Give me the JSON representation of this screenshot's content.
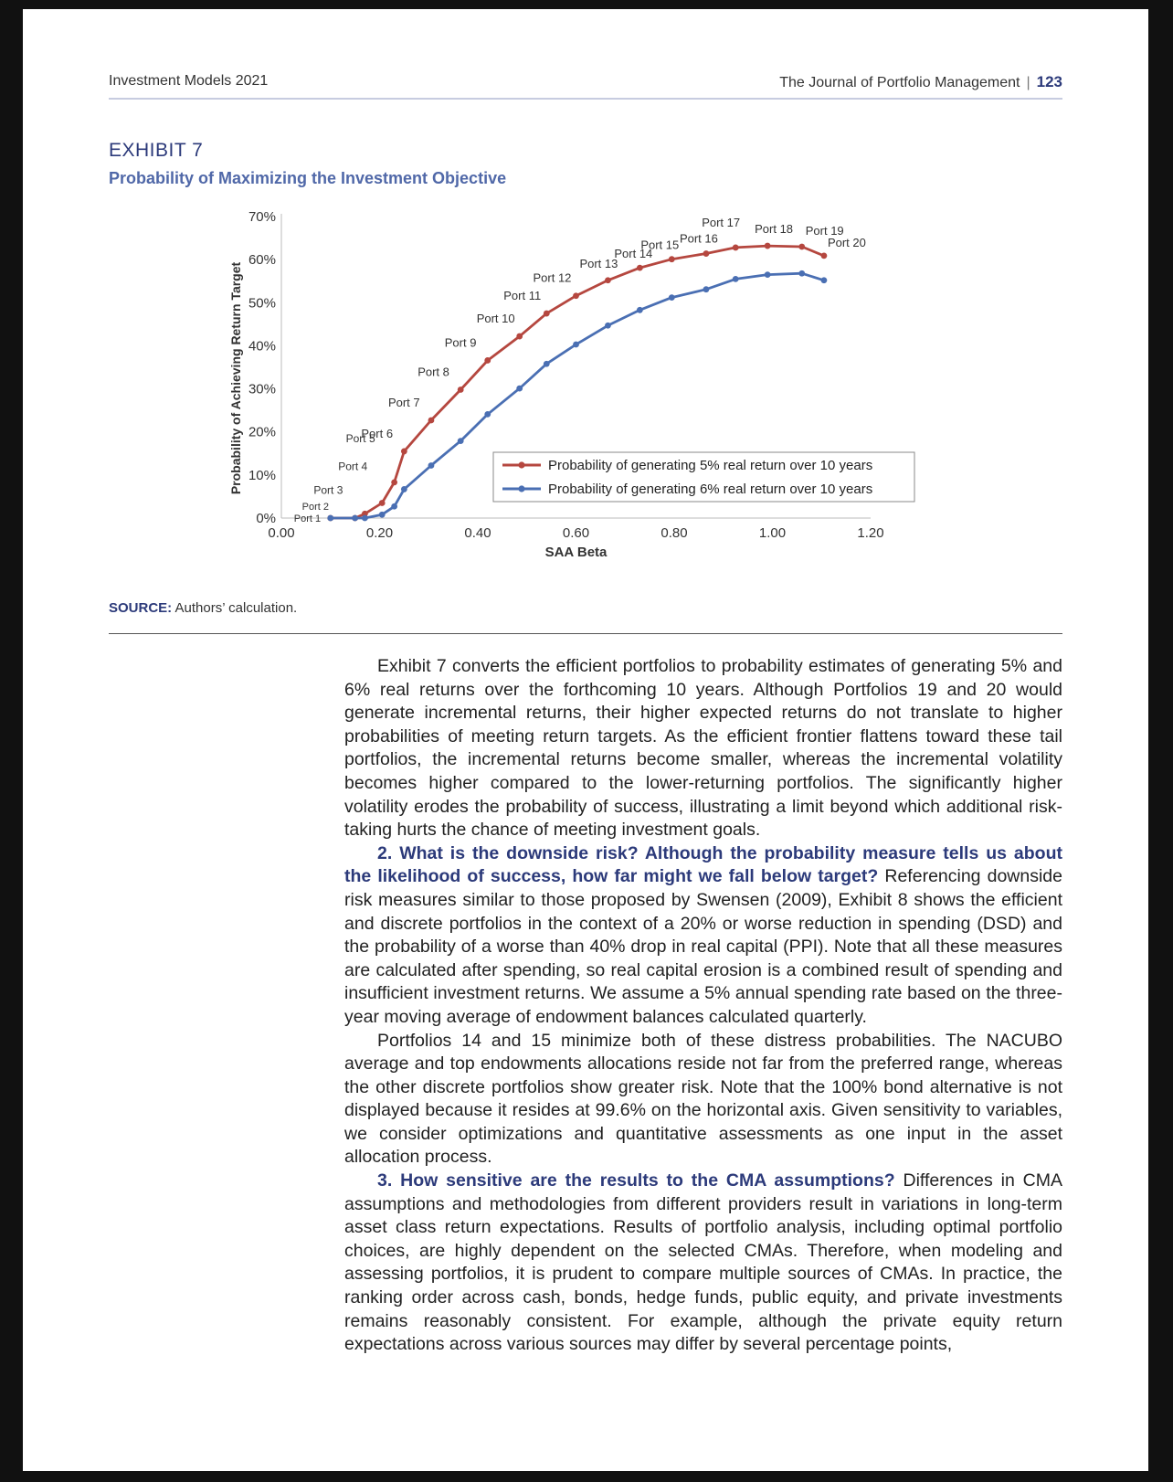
{
  "header": {
    "left": "Investment Models 2021",
    "right": "The Journal of Portfolio Management",
    "page": "123"
  },
  "exhibit": {
    "label": "EXHIBIT 7",
    "title": "Probability of Maximizing the Investment Objective"
  },
  "source": {
    "label": "SOURCE:",
    "text": "Authors’ calculation."
  },
  "chart_data": {
    "type": "line",
    "xlabel": "SAA Beta",
    "ylabel": "Probability of Achieving Return Target",
    "xlim": [
      0,
      1.2
    ],
    "ylim": [
      0,
      70
    ],
    "xticks": [
      "0.00",
      "0.20",
      "0.40",
      "0.60",
      "0.80",
      "1.00",
      "1.20"
    ],
    "yticks": [
      "0%",
      "10%",
      "20%",
      "30%",
      "40%",
      "50%",
      "60%",
      "70%"
    ],
    "legend_position": "center-right",
    "series": [
      {
        "name": "Probability of generating 5% real return over 10 years",
        "color": "#b5473f",
        "x": [
          0.1,
          0.15,
          0.17,
          0.205,
          0.23,
          0.25,
          0.305,
          0.365,
          0.42,
          0.485,
          0.54,
          0.6,
          0.665,
          0.73,
          0.795,
          0.865,
          0.925,
          0.99,
          1.06,
          1.105
        ],
        "y": [
          0.0,
          0.0,
          1.0,
          3.5,
          8.3,
          15.5,
          22.7,
          29.8,
          36.6,
          42.2,
          47.5,
          51.6,
          55.2,
          58.1,
          60.1,
          61.4,
          62.8,
          63.2,
          63.0,
          60.9
        ]
      },
      {
        "name": "Probability of generating 6% real return over 10 years",
        "color": "#4a6fb3",
        "x": [
          0.1,
          0.15,
          0.17,
          0.205,
          0.23,
          0.25,
          0.305,
          0.365,
          0.42,
          0.485,
          0.54,
          0.6,
          0.665,
          0.73,
          0.795,
          0.865,
          0.925,
          0.99,
          1.06,
          1.105
        ],
        "y": [
          0.0,
          0.0,
          0.0,
          0.8,
          2.7,
          6.7,
          12.2,
          17.9,
          24.1,
          30.1,
          35.8,
          40.3,
          44.7,
          48.3,
          51.2,
          53.1,
          55.5,
          56.5,
          56.8,
          55.2
        ]
      }
    ],
    "annotations": [
      "Port 1",
      "Port 2",
      "Port 3",
      "Port 4",
      "Port 5",
      "Port 6",
      "Port 7",
      "Port 8",
      "Port 9",
      "Port 10",
      "Port 11",
      "Port 12",
      "Port 13",
      "Port 14",
      "Port 15",
      "Port 16",
      "Port 17",
      "Port 18",
      "Port 19",
      "Port 20"
    ]
  },
  "body": {
    "p1": "Exhibit 7 converts the efficient portfolios to probability estimates of generating 5% and 6% real returns over the forthcoming 10 years. Although Portfolios 19 and 20 would generate incremental returns, their higher expected returns do not translate to higher probabilities of meeting return targets. As the efficient frontier flattens toward these tail portfolios, the incremental returns become smaller, whereas the incremental volatility becomes higher compared to the lower-returning portfolios. The significantly higher volatility erodes the probability of success, illustrating a limit beyond which additional risk-taking hurts the chance of meeting investment goals.",
    "p2_bold": "2. What is the downside risk? Although the probability measure tells us about the likelihood of success, how far might we fall below target?",
    "p2": " Referencing downside risk measures similar to those proposed by Swensen (2009), Exhibit 8 shows the efficient and discrete portfolios in the context of a 20% or worse reduction in spending (DSD) and the probability of a worse than 40% drop in real capital (PPI). Note that all these measures are calculated after spending, so real capital erosion is a combined result of spending and insufficient investment returns. We assume a 5% annual spending rate based on the three-year moving average of endowment balances calculated quarterly.",
    "p3": "Portfolios 14 and 15 minimize both of these distress probabilities. The NACUBO average and top endowments allocations reside not far from the preferred range, whereas the other discrete portfolios show greater risk. Note that the 100% bond alternative is not displayed because it resides at 99.6% on the horizontal axis. Given sensitivity to variables, we consider optimizations and quantitative assessments as one input in the asset allocation process.",
    "p4_bold": "3. How sensitive are the results to the CMA assumptions?",
    "p4": " Differences in CMA assumptions and methodologies from different providers result in variations in long-term asset class return expectations. Results of portfolio analysis, including optimal portfolio choices, are highly dependent on the selected CMAs. Therefore, when modeling and assessing portfolios, it is prudent to compare multiple sources of CMAs. In practice, the ranking order across cash, bonds, hedge funds, public equity, and private investments remains reasonably consistent. For example, although the private equity return expectations across various sources may differ by several percentage points,"
  }
}
